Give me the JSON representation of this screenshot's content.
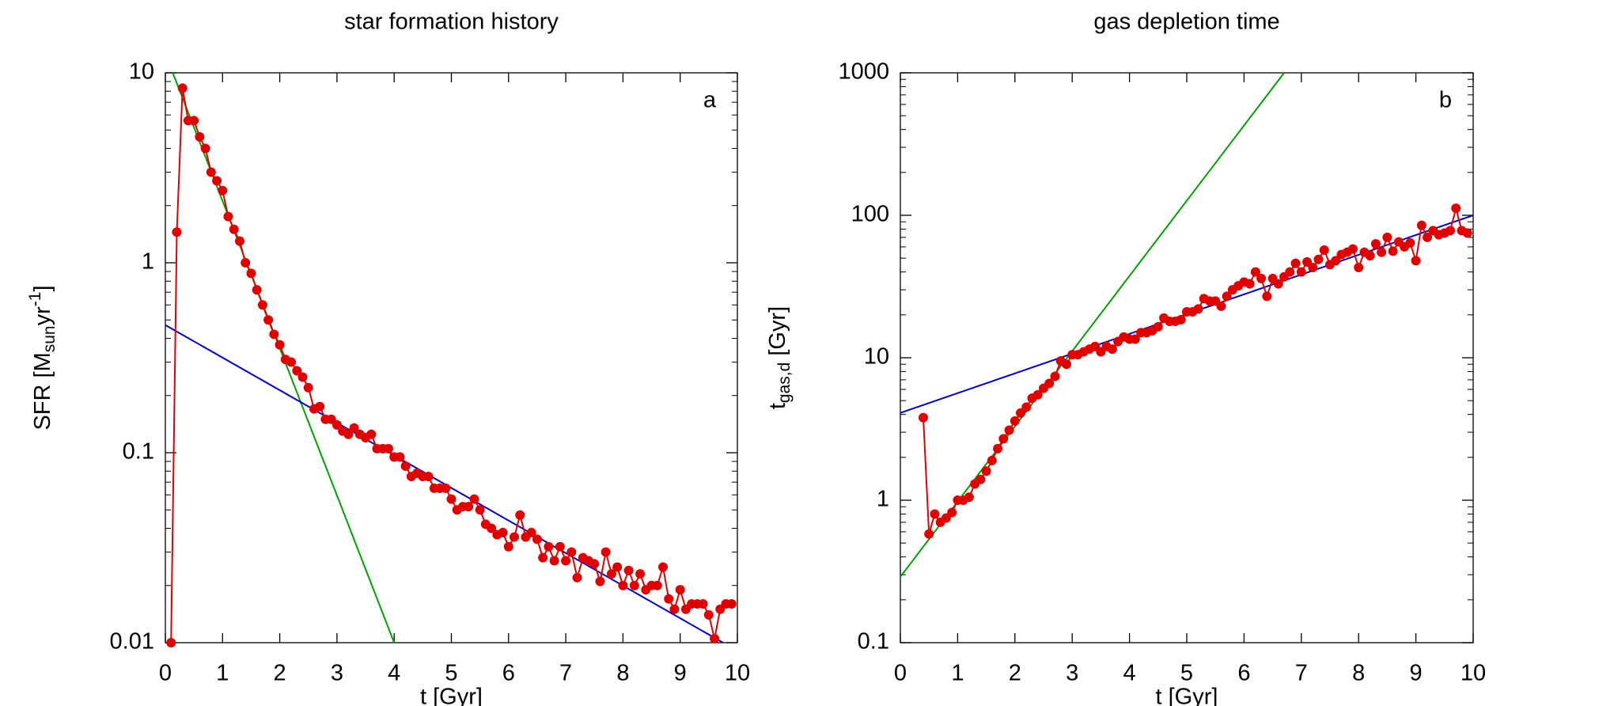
{
  "chart_data": [
    {
      "type": "line",
      "title": "star formation history",
      "panel": "a",
      "xlabel": "t [Gyr]",
      "ylabel": {
        "main": "SFR [M",
        "sub": "sun",
        "unit": "yr",
        "sup": "-1",
        "close": "]"
      },
      "xlim": [
        0,
        10
      ],
      "ylim": [
        0.01,
        10
      ],
      "log_y": true,
      "xticks": [
        0,
        1,
        2,
        3,
        4,
        5,
        6,
        7,
        8,
        9,
        10
      ],
      "yticks": [
        0.01,
        0.1,
        1,
        10
      ],
      "series": [
        {
          "color": "#00a000",
          "x": [
            0.13,
            4.0
          ],
          "values": [
            10,
            0.01
          ]
        },
        {
          "color": "#0000c0",
          "x": [
            0,
            9.75
          ],
          "values": [
            0.47,
            0.01
          ]
        },
        {
          "color": "#e00000",
          "markers": true,
          "x": [
            0.1,
            0.2,
            0.3,
            0.4,
            0.5,
            0.6,
            0.7,
            0.8,
            0.9,
            1.0,
            1.1,
            1.2,
            1.3,
            1.4,
            1.5,
            1.6,
            1.7,
            1.8,
            1.9,
            2.0,
            2.1,
            2.2,
            2.3,
            2.4,
            2.5,
            2.6,
            2.7,
            2.8,
            2.9,
            3.0,
            3.1,
            3.2,
            3.3,
            3.4,
            3.5,
            3.6,
            3.7,
            3.8,
            3.9,
            4.0,
            4.1,
            4.2,
            4.3,
            4.4,
            4.5,
            4.6,
            4.7,
            4.8,
            4.9,
            5.0,
            5.1,
            5.2,
            5.3,
            5.4,
            5.5,
            5.6,
            5.7,
            5.8,
            5.9,
            6.0,
            6.1,
            6.2,
            6.3,
            6.4,
            6.5,
            6.6,
            6.7,
            6.8,
            6.9,
            7.0,
            7.1,
            7.2,
            7.3,
            7.4,
            7.5,
            7.6,
            7.7,
            7.8,
            7.9,
            8.0,
            8.1,
            8.2,
            8.3,
            8.4,
            8.5,
            8.6,
            8.7,
            8.8,
            8.9,
            9.0,
            9.1,
            9.2,
            9.3,
            9.4,
            9.5,
            9.6,
            9.7,
            9.8,
            9.9
          ],
          "values": [
            0.01,
            1.45,
            8.3,
            5.6,
            5.6,
            4.6,
            4.0,
            3.0,
            2.7,
            2.4,
            1.75,
            1.5,
            1.3,
            1.0,
            0.88,
            0.72,
            0.6,
            0.5,
            0.42,
            0.37,
            0.31,
            0.3,
            0.27,
            0.25,
            0.22,
            0.17,
            0.175,
            0.15,
            0.15,
            0.14,
            0.13,
            0.125,
            0.135,
            0.125,
            0.12,
            0.125,
            0.105,
            0.105,
            0.105,
            0.095,
            0.095,
            0.085,
            0.075,
            0.078,
            0.075,
            0.075,
            0.065,
            0.065,
            0.065,
            0.057,
            0.05,
            0.052,
            0.052,
            0.057,
            0.05,
            0.042,
            0.04,
            0.037,
            0.038,
            0.032,
            0.036,
            0.047,
            0.036,
            0.038,
            0.035,
            0.028,
            0.032,
            0.027,
            0.032,
            0.027,
            0.03,
            0.022,
            0.028,
            0.027,
            0.026,
            0.021,
            0.03,
            0.023,
            0.025,
            0.02,
            0.024,
            0.02,
            0.023,
            0.019,
            0.02,
            0.02,
            0.025,
            0.017,
            0.015,
            0.019,
            0.015,
            0.016,
            0.016,
            0.016,
            0.014,
            0.0105,
            0.015,
            0.016,
            0.016
          ]
        }
      ]
    },
    {
      "type": "line",
      "title": "gas depletion time",
      "panel": "b",
      "xlabel": "t [Gyr]",
      "ylabel": {
        "main": "t",
        "sub": "gas,d",
        "unit": " [Gyr]"
      },
      "xlim": [
        0,
        10
      ],
      "ylim": [
        0.1,
        1000
      ],
      "log_y": true,
      "xticks": [
        0,
        1,
        2,
        3,
        4,
        5,
        6,
        7,
        8,
        9,
        10
      ],
      "yticks": [
        0.1,
        1,
        10,
        100,
        1000
      ],
      "series": [
        {
          "color": "#00a000",
          "x": [
            0,
            6.7
          ],
          "values": [
            0.29,
            1000
          ]
        },
        {
          "color": "#0000c0",
          "x": [
            0,
            10
          ],
          "values": [
            4.1,
            100
          ]
        },
        {
          "color": "#e00000",
          "markers": true,
          "x": [
            0.4,
            0.5,
            0.6,
            0.7,
            0.8,
            0.9,
            1.0,
            1.1,
            1.2,
            1.3,
            1.4,
            1.5,
            1.6,
            1.7,
            1.8,
            1.9,
            2.0,
            2.1,
            2.2,
            2.3,
            2.4,
            2.5,
            2.6,
            2.7,
            2.8,
            2.9,
            3.0,
            3.1,
            3.2,
            3.3,
            3.4,
            3.5,
            3.6,
            3.7,
            3.8,
            3.9,
            4.0,
            4.1,
            4.2,
            4.3,
            4.4,
            4.5,
            4.6,
            4.7,
            4.8,
            4.9,
            5.0,
            5.1,
            5.2,
            5.3,
            5.4,
            5.5,
            5.6,
            5.7,
            5.8,
            5.9,
            6.0,
            6.1,
            6.2,
            6.3,
            6.4,
            6.5,
            6.6,
            6.7,
            6.8,
            6.9,
            7.0,
            7.1,
            7.2,
            7.3,
            7.4,
            7.5,
            7.6,
            7.7,
            7.8,
            7.9,
            8.0,
            8.1,
            8.2,
            8.3,
            8.4,
            8.5,
            8.6,
            8.7,
            8.8,
            8.9,
            9.0,
            9.1,
            9.2,
            9.3,
            9.4,
            9.5,
            9.6,
            9.7,
            9.8,
            9.9
          ],
          "values": [
            3.8,
            0.58,
            0.8,
            0.7,
            0.75,
            0.82,
            1.0,
            1.0,
            1.05,
            1.3,
            1.4,
            1.6,
            1.9,
            2.3,
            2.7,
            3.1,
            3.6,
            4.1,
            4.5,
            5.2,
            5.5,
            6.1,
            6.6,
            7.4,
            9.5,
            9.0,
            10.5,
            10.5,
            11,
            11.5,
            12,
            11,
            12,
            11.5,
            13,
            14,
            13.5,
            13.5,
            15,
            15,
            15.5,
            16.5,
            19,
            18,
            18,
            18.5,
            21,
            21,
            22,
            26,
            25,
            25,
            23,
            27,
            30,
            32,
            34,
            33,
            40,
            36,
            27,
            36,
            33,
            37,
            40,
            46,
            40,
            47,
            43,
            49,
            57,
            45,
            48,
            53,
            55,
            58,
            43,
            55,
            52,
            63,
            55,
            70,
            56,
            65,
            60,
            64,
            48,
            85,
            70,
            78,
            73,
            75,
            78,
            112,
            78,
            75
          ]
        }
      ]
    }
  ]
}
